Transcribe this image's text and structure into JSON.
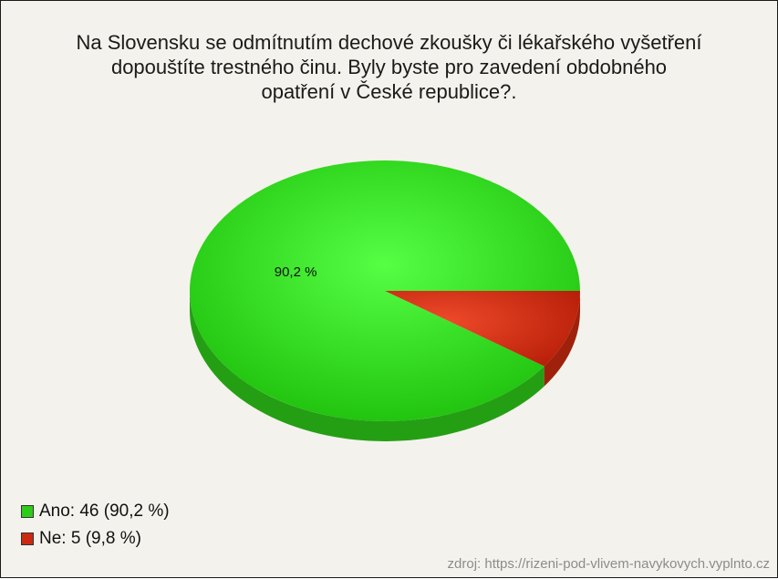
{
  "chart_data": {
    "type": "pie",
    "title_lines": [
      "Na Slovensku se odmítnutím dechové zkoušky či lékařského vyšetření",
      "dopouštíte trestného činu. Byly byste pro zavedení obdobného",
      "opatření v České republice?."
    ],
    "slices": [
      {
        "label": "Ano",
        "count": 46,
        "percent": 90.2,
        "color": "#2ecc1a",
        "legend": "Ano: 46 (90,2 %)",
        "data_label": "90,2 %"
      },
      {
        "label": "Ne",
        "count": 5,
        "percent": 9.8,
        "color": "#cc2a10",
        "legend": "Ne: 5 (9,8 %)",
        "data_label": ""
      }
    ],
    "legend_position": "bottom-left",
    "style": "3d"
  },
  "source": "zdroj: https://rizeni-pod-vlivem-navykovych.vyplnto.cz"
}
